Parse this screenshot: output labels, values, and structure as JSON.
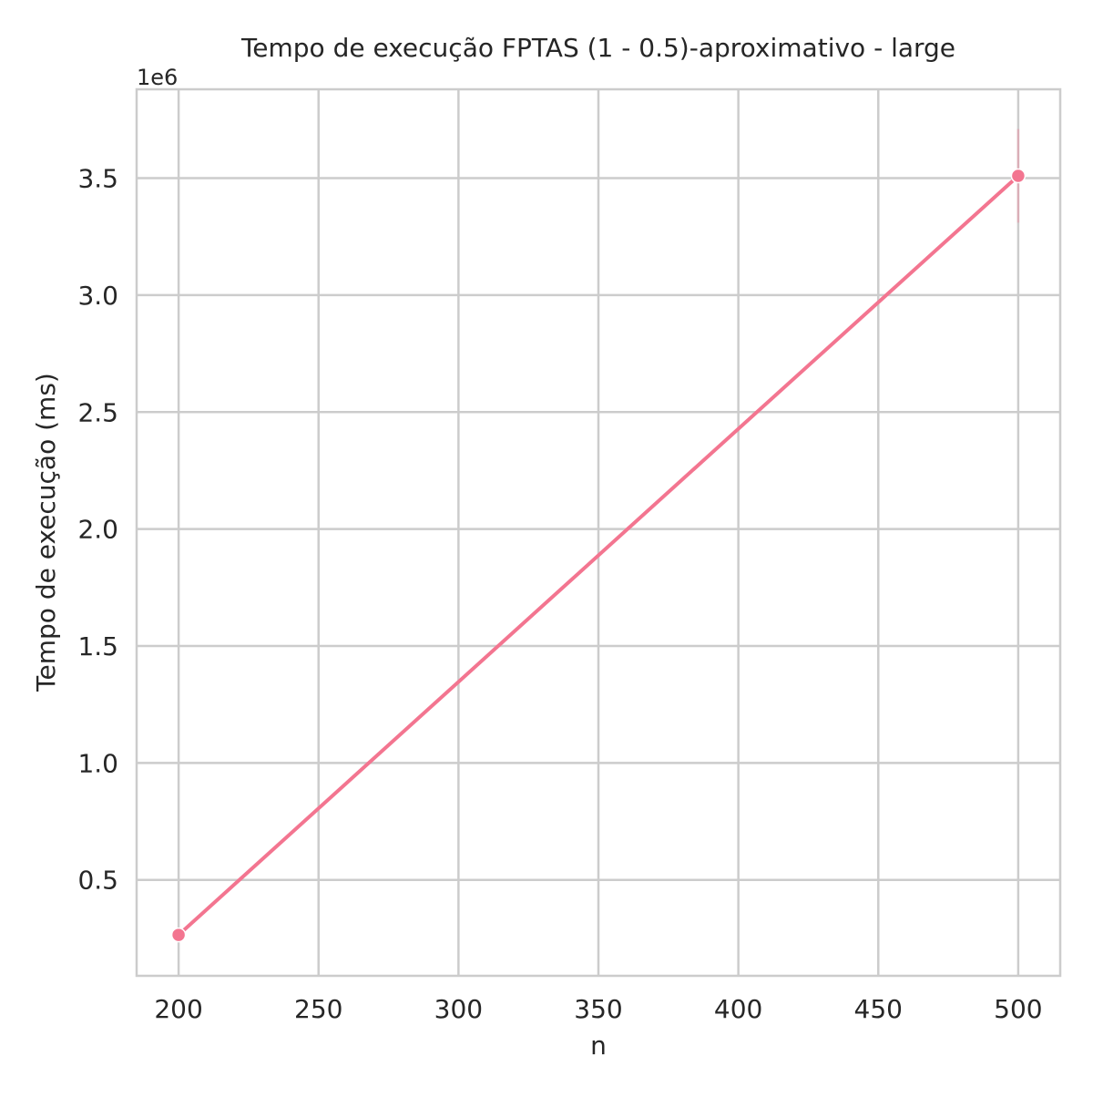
{
  "chart_data": {
    "type": "line",
    "title": "Tempo de execução FPTAS (1 - 0.5)-aproximativo - large",
    "xlabel": "n",
    "ylabel": "Tempo de execução (ms)",
    "y_offset_label": "1e6",
    "x": [
      200,
      500
    ],
    "series": [
      {
        "values": [
          265000,
          3510000
        ],
        "ci_low": [
          265000,
          3310000
        ],
        "ci_high": [
          265000,
          3710000
        ],
        "color": "#f37590"
      }
    ],
    "xlim": [
      185,
      515
    ],
    "ylim": [
      90000,
      3880000
    ],
    "x_ticks": [
      200,
      250,
      300,
      350,
      400,
      450,
      500
    ],
    "x_tick_labels": [
      "200",
      "250",
      "300",
      "350",
      "400",
      "450",
      "500"
    ],
    "y_ticks": [
      500000,
      1000000,
      1500000,
      2000000,
      2500000,
      3000000,
      3500000
    ],
    "y_tick_labels": [
      "0.5",
      "1.0",
      "1.5",
      "2.0",
      "2.5",
      "3.0",
      "3.5"
    ],
    "grid": true,
    "legend": "none",
    "colors": {
      "grid": "#cccccc",
      "frame": "#cccccc",
      "text": "#262626",
      "line": "#f37590"
    }
  }
}
